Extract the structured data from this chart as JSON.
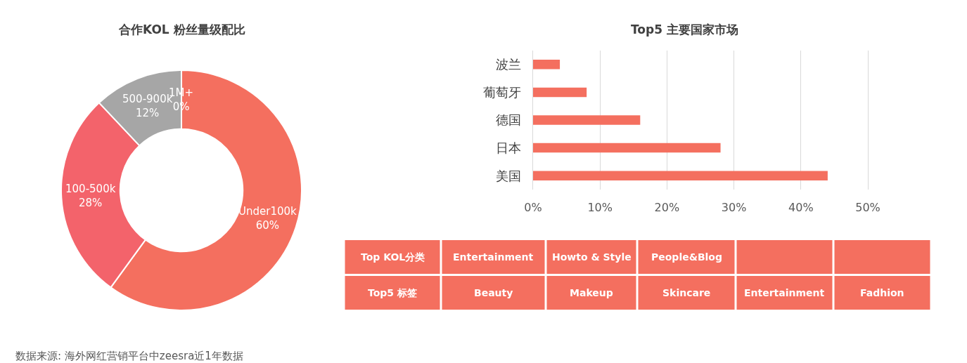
{
  "chart_data": [
    {
      "type": "donut",
      "title": "合作KOL 粉丝量级配比",
      "categories": [
        "Under100k",
        "100-500k",
        "500-900k",
        "1M+"
      ],
      "values": [
        60,
        28,
        12,
        0
      ],
      "colors": [
        "#f46f5f",
        "#f3636b",
        "#a6a6a6",
        null
      ],
      "value_labels": [
        "60%",
        "28%",
        "12%",
        "0%"
      ],
      "annotations": [
        "数据来源: 海外网红营销平台中zeesra近1年数据"
      ]
    },
    {
      "type": "bar",
      "orientation": "horizontal",
      "title": "Top5 主要国家市场",
      "categories": [
        "波兰",
        "葡萄牙",
        "德国",
        "日本",
        "美国"
      ],
      "values": [
        4,
        8,
        16,
        28,
        44
      ],
      "color": "#f46f5f",
      "xlim": [
        0,
        50
      ],
      "xticks": [
        {
          "value": 0,
          "label": "0%"
        },
        {
          "value": 10,
          "label": "10%"
        },
        {
          "value": 20,
          "label": "20%"
        },
        {
          "value": 30,
          "label": "30%"
        },
        {
          "value": 40,
          "label": "40%"
        },
        {
          "value": 50,
          "label": "50%"
        }
      ],
      "grid": "x"
    },
    {
      "type": "other",
      "y_categories": [
        "Top KOL分类",
        "Top5 标签"
      ],
      "cell_labels": [
        [
          "Entertainment",
          "Howto & Style",
          "People&Blog",
          null,
          null
        ],
        [
          "Beauty",
          "Makeup",
          "Skincare",
          "Entertainment",
          "Fadhion"
        ]
      ],
      "color": "#f46f5f"
    }
  ]
}
